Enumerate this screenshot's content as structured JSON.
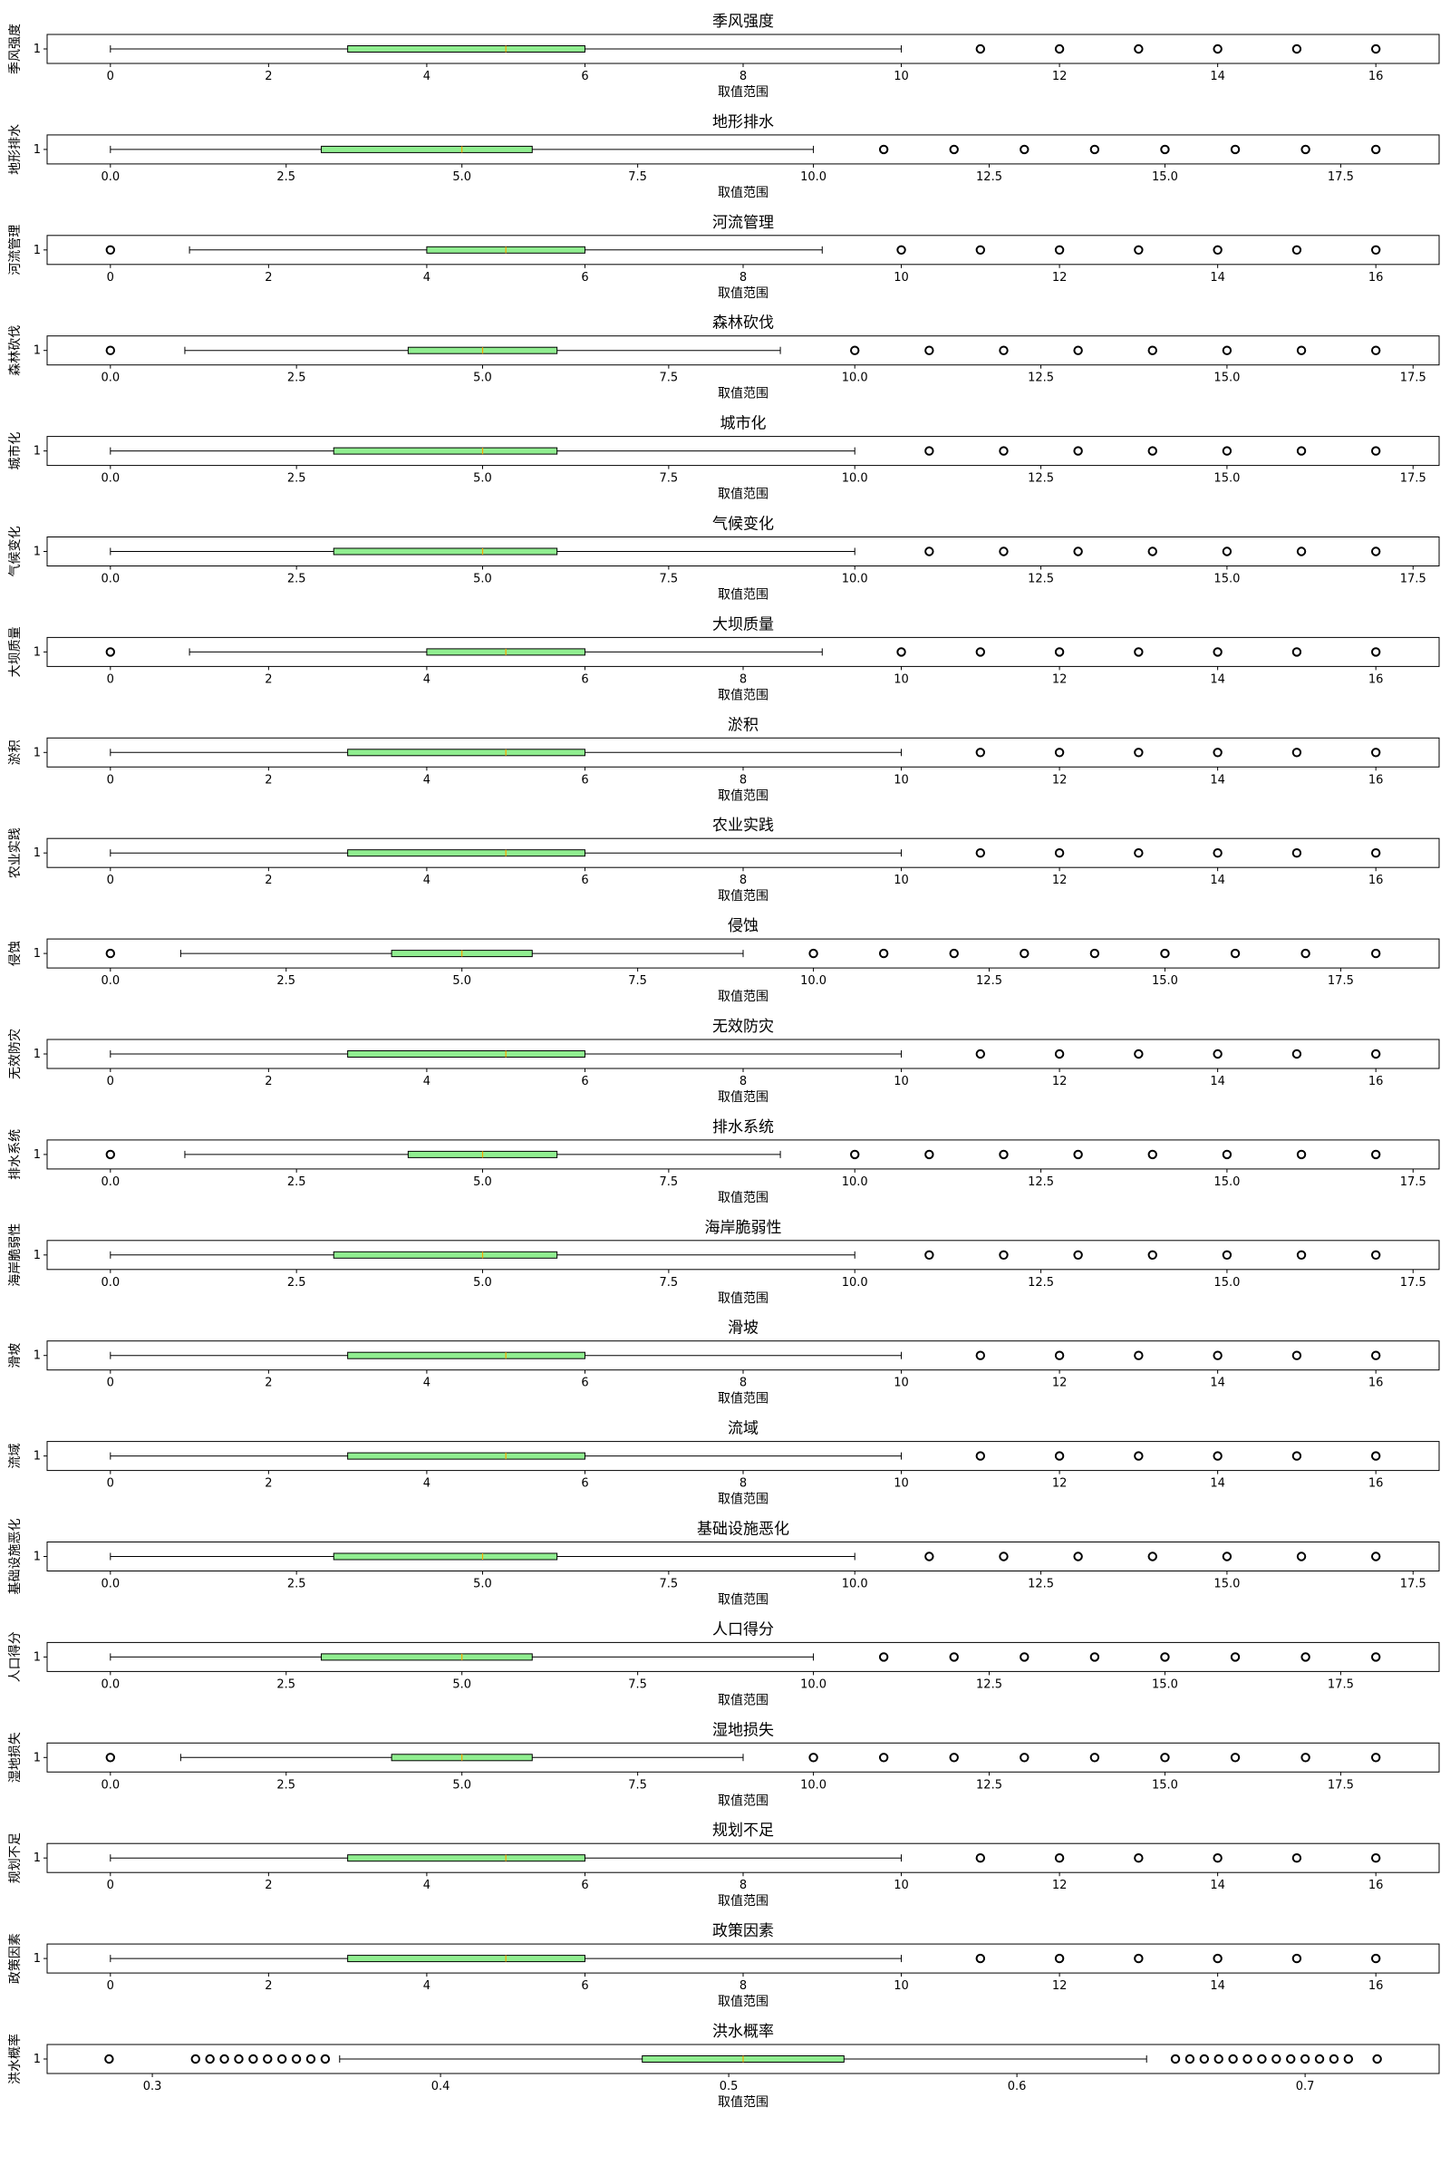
{
  "chart_data": [
    {
      "type": "boxplot",
      "title": "季风强度",
      "ylabel": "季风强度",
      "xlabel": "取值范围",
      "ytick": "1",
      "xlim": [
        -0.8,
        16.8
      ],
      "xticks": [
        0,
        2,
        4,
        6,
        8,
        10,
        12,
        14,
        16
      ],
      "xtick_labels": [
        "0",
        "2",
        "4",
        "6",
        "8",
        "10",
        "12",
        "14",
        "16"
      ],
      "whisker_low": 0,
      "q1": 3,
      "median": 5,
      "q3": 6,
      "whisker_high": 10,
      "fliers": [
        11,
        12,
        13,
        14,
        15,
        16
      ],
      "box_color": "#90ee90",
      "median_color": "#ffa500"
    },
    {
      "type": "boxplot",
      "title": "地形排水",
      "ylabel": "地形排水",
      "xlabel": "取值范围",
      "ytick": "1",
      "xlim": [
        -0.9,
        18.9
      ],
      "xticks": [
        0,
        2.5,
        5,
        7.5,
        10,
        12.5,
        15,
        17.5
      ],
      "xtick_labels": [
        "0.0",
        "2.5",
        "5.0",
        "7.5",
        "10.0",
        "12.5",
        "15.0",
        "17.5"
      ],
      "whisker_low": 0,
      "q1": 3,
      "median": 5,
      "q3": 6,
      "whisker_high": 10,
      "fliers": [
        11,
        12,
        13,
        14,
        15,
        16,
        17,
        18
      ],
      "box_color": "#90ee90",
      "median_color": "#ffa500"
    },
    {
      "type": "boxplot",
      "title": "河流管理",
      "ylabel": "河流管理",
      "xlabel": "取值范围",
      "ytick": "1",
      "xlim": [
        -0.8,
        16.8
      ],
      "xticks": [
        0,
        2,
        4,
        6,
        8,
        10,
        12,
        14,
        16
      ],
      "xtick_labels": [
        "0",
        "2",
        "4",
        "6",
        "8",
        "10",
        "12",
        "14",
        "16"
      ],
      "whisker_low": 1,
      "q1": 4,
      "median": 5,
      "q3": 6,
      "whisker_high": 9,
      "fliers": [
        0,
        10,
        11,
        12,
        13,
        14,
        15,
        16
      ],
      "box_color": "#90ee90",
      "median_color": "#ffa500"
    },
    {
      "type": "boxplot",
      "title": "森林砍伐",
      "ylabel": "森林砍伐",
      "xlabel": "取值范围",
      "ytick": "1",
      "xlim": [
        -0.85,
        17.85
      ],
      "xticks": [
        0,
        2.5,
        5,
        7.5,
        10,
        12.5,
        15,
        17.5
      ],
      "xtick_labels": [
        "0.0",
        "2.5",
        "5.0",
        "7.5",
        "10.0",
        "12.5",
        "15.0",
        "17.5"
      ],
      "whisker_low": 1,
      "q1": 4,
      "median": 5,
      "q3": 6,
      "whisker_high": 9,
      "fliers": [
        0,
        10,
        11,
        12,
        13,
        14,
        15,
        16,
        17
      ],
      "box_color": "#90ee90",
      "median_color": "#ffa500"
    },
    {
      "type": "boxplot",
      "title": "城市化",
      "ylabel": "城市化",
      "xlabel": "取值范围",
      "ytick": "1",
      "xlim": [
        -0.85,
        17.85
      ],
      "xticks": [
        0,
        2.5,
        5,
        7.5,
        10,
        12.5,
        15,
        17.5
      ],
      "xtick_labels": [
        "0.0",
        "2.5",
        "5.0",
        "7.5",
        "10.0",
        "12.5",
        "15.0",
        "17.5"
      ],
      "whisker_low": 0,
      "q1": 3,
      "median": 5,
      "q3": 6,
      "whisker_high": 10,
      "fliers": [
        11,
        12,
        13,
        14,
        15,
        16,
        17
      ],
      "box_color": "#90ee90",
      "median_color": "#ffa500"
    },
    {
      "type": "boxplot",
      "title": "气候变化",
      "ylabel": "气候变化",
      "xlabel": "取值范围",
      "ytick": "1",
      "xlim": [
        -0.85,
        17.85
      ],
      "xticks": [
        0,
        2.5,
        5,
        7.5,
        10,
        12.5,
        15,
        17.5
      ],
      "xtick_labels": [
        "0.0",
        "2.5",
        "5.0",
        "7.5",
        "10.0",
        "12.5",
        "15.0",
        "17.5"
      ],
      "whisker_low": 0,
      "q1": 3,
      "median": 5,
      "q3": 6,
      "whisker_high": 10,
      "fliers": [
        11,
        12,
        13,
        14,
        15,
        16,
        17
      ],
      "box_color": "#90ee90",
      "median_color": "#ffa500"
    },
    {
      "type": "boxplot",
      "title": "大坝质量",
      "ylabel": "大坝质量",
      "xlabel": "取值范围",
      "ytick": "1",
      "xlim": [
        -0.8,
        16.8
      ],
      "xticks": [
        0,
        2,
        4,
        6,
        8,
        10,
        12,
        14,
        16
      ],
      "xtick_labels": [
        "0",
        "2",
        "4",
        "6",
        "8",
        "10",
        "12",
        "14",
        "16"
      ],
      "whisker_low": 1,
      "q1": 4,
      "median": 5,
      "q3": 6,
      "whisker_high": 9,
      "fliers": [
        0,
        10,
        11,
        12,
        13,
        14,
        15,
        16
      ],
      "box_color": "#90ee90",
      "median_color": "#ffa500"
    },
    {
      "type": "boxplot",
      "title": "淤积",
      "ylabel": "淤积",
      "xlabel": "取值范围",
      "ytick": "1",
      "xlim": [
        -0.8,
        16.8
      ],
      "xticks": [
        0,
        2,
        4,
        6,
        8,
        10,
        12,
        14,
        16
      ],
      "xtick_labels": [
        "0",
        "2",
        "4",
        "6",
        "8",
        "10",
        "12",
        "14",
        "16"
      ],
      "whisker_low": 0,
      "q1": 3,
      "median": 5,
      "q3": 6,
      "whisker_high": 10,
      "fliers": [
        11,
        12,
        13,
        14,
        15,
        16
      ],
      "box_color": "#90ee90",
      "median_color": "#ffa500"
    },
    {
      "type": "boxplot",
      "title": "农业实践",
      "ylabel": "农业实践",
      "xlabel": "取值范围",
      "ytick": "1",
      "xlim": [
        -0.8,
        16.8
      ],
      "xticks": [
        0,
        2,
        4,
        6,
        8,
        10,
        12,
        14,
        16
      ],
      "xtick_labels": [
        "0",
        "2",
        "4",
        "6",
        "8",
        "10",
        "12",
        "14",
        "16"
      ],
      "whisker_low": 0,
      "q1": 3,
      "median": 5,
      "q3": 6,
      "whisker_high": 10,
      "fliers": [
        11,
        12,
        13,
        14,
        15,
        16
      ],
      "box_color": "#90ee90",
      "median_color": "#ffa500"
    },
    {
      "type": "boxplot",
      "title": "侵蚀",
      "ylabel": "侵蚀",
      "xlabel": "取值范围",
      "ytick": "1",
      "xlim": [
        -0.9,
        18.9
      ],
      "xticks": [
        0,
        2.5,
        5,
        7.5,
        10,
        12.5,
        15,
        17.5
      ],
      "xtick_labels": [
        "0.0",
        "2.5",
        "5.0",
        "7.5",
        "10.0",
        "12.5",
        "15.0",
        "17.5"
      ],
      "whisker_low": 1,
      "q1": 4,
      "median": 5,
      "q3": 6,
      "whisker_high": 9,
      "fliers": [
        0,
        10,
        11,
        12,
        13,
        14,
        15,
        16,
        17,
        18
      ],
      "box_color": "#90ee90",
      "median_color": "#ffa500"
    },
    {
      "type": "boxplot",
      "title": "无效防灾",
      "ylabel": "无效防灾",
      "xlabel": "取值范围",
      "ytick": "1",
      "xlim": [
        -0.8,
        16.8
      ],
      "xticks": [
        0,
        2,
        4,
        6,
        8,
        10,
        12,
        14,
        16
      ],
      "xtick_labels": [
        "0",
        "2",
        "4",
        "6",
        "8",
        "10",
        "12",
        "14",
        "16"
      ],
      "whisker_low": 0,
      "q1": 3,
      "median": 5,
      "q3": 6,
      "whisker_high": 10,
      "fliers": [
        11,
        12,
        13,
        14,
        15,
        16
      ],
      "box_color": "#90ee90",
      "median_color": "#ffa500"
    },
    {
      "type": "boxplot",
      "title": "排水系统",
      "ylabel": "排水系统",
      "xlabel": "取值范围",
      "ytick": "1",
      "xlim": [
        -0.85,
        17.85
      ],
      "xticks": [
        0,
        2.5,
        5,
        7.5,
        10,
        12.5,
        15,
        17.5
      ],
      "xtick_labels": [
        "0.0",
        "2.5",
        "5.0",
        "7.5",
        "10.0",
        "12.5",
        "15.0",
        "17.5"
      ],
      "whisker_low": 1,
      "q1": 4,
      "median": 5,
      "q3": 6,
      "whisker_high": 9,
      "fliers": [
        0,
        10,
        11,
        12,
        13,
        14,
        15,
        16,
        17
      ],
      "box_color": "#90ee90",
      "median_color": "#ffa500"
    },
    {
      "type": "boxplot",
      "title": "海岸脆弱性",
      "ylabel": "海岸脆弱性",
      "xlabel": "取值范围",
      "ytick": "1",
      "xlim": [
        -0.85,
        17.85
      ],
      "xticks": [
        0,
        2.5,
        5,
        7.5,
        10,
        12.5,
        15,
        17.5
      ],
      "xtick_labels": [
        "0.0",
        "2.5",
        "5.0",
        "7.5",
        "10.0",
        "12.5",
        "15.0",
        "17.5"
      ],
      "whisker_low": 0,
      "q1": 3,
      "median": 5,
      "q3": 6,
      "whisker_high": 10,
      "fliers": [
        11,
        12,
        13,
        14,
        15,
        16,
        17
      ],
      "box_color": "#90ee90",
      "median_color": "#ffa500"
    },
    {
      "type": "boxplot",
      "title": "滑坡",
      "ylabel": "滑坡",
      "xlabel": "取值范围",
      "ytick": "1",
      "xlim": [
        -0.8,
        16.8
      ],
      "xticks": [
        0,
        2,
        4,
        6,
        8,
        10,
        12,
        14,
        16
      ],
      "xtick_labels": [
        "0",
        "2",
        "4",
        "6",
        "8",
        "10",
        "12",
        "14",
        "16"
      ],
      "whisker_low": 0,
      "q1": 3,
      "median": 5,
      "q3": 6,
      "whisker_high": 10,
      "fliers": [
        11,
        12,
        13,
        14,
        15,
        16
      ],
      "box_color": "#90ee90",
      "median_color": "#ffa500"
    },
    {
      "type": "boxplot",
      "title": "流域",
      "ylabel": "流域",
      "xlabel": "取值范围",
      "ytick": "1",
      "xlim": [
        -0.8,
        16.8
      ],
      "xticks": [
        0,
        2,
        4,
        6,
        8,
        10,
        12,
        14,
        16
      ],
      "xtick_labels": [
        "0",
        "2",
        "4",
        "6",
        "8",
        "10",
        "12",
        "14",
        "16"
      ],
      "whisker_low": 0,
      "q1": 3,
      "median": 5,
      "q3": 6,
      "whisker_high": 10,
      "fliers": [
        11,
        12,
        13,
        14,
        15,
        16
      ],
      "box_color": "#90ee90",
      "median_color": "#ffa500"
    },
    {
      "type": "boxplot",
      "title": "基础设施恶化",
      "ylabel": "基础设施恶化",
      "xlabel": "取值范围",
      "ytick": "1",
      "xlim": [
        -0.85,
        17.85
      ],
      "xticks": [
        0,
        2.5,
        5,
        7.5,
        10,
        12.5,
        15,
        17.5
      ],
      "xtick_labels": [
        "0.0",
        "2.5",
        "5.0",
        "7.5",
        "10.0",
        "12.5",
        "15.0",
        "17.5"
      ],
      "whisker_low": 0,
      "q1": 3,
      "median": 5,
      "q3": 6,
      "whisker_high": 10,
      "fliers": [
        11,
        12,
        13,
        14,
        15,
        16,
        17
      ],
      "box_color": "#90ee90",
      "median_color": "#ffa500"
    },
    {
      "type": "boxplot",
      "title": "人口得分",
      "ylabel": "人口得分",
      "xlabel": "取值范围",
      "ytick": "1",
      "xlim": [
        -0.9,
        18.9
      ],
      "xticks": [
        0,
        2.5,
        5,
        7.5,
        10,
        12.5,
        15,
        17.5
      ],
      "xtick_labels": [
        "0.0",
        "2.5",
        "5.0",
        "7.5",
        "10.0",
        "12.5",
        "15.0",
        "17.5"
      ],
      "whisker_low": 0,
      "q1": 3,
      "median": 5,
      "q3": 6,
      "whisker_high": 10,
      "fliers": [
        11,
        12,
        13,
        14,
        15,
        16,
        17,
        18
      ],
      "box_color": "#90ee90",
      "median_color": "#ffa500"
    },
    {
      "type": "boxplot",
      "title": "湿地损失",
      "ylabel": "湿地损失",
      "xlabel": "取值范围",
      "ytick": "1",
      "xlim": [
        -0.9,
        18.9
      ],
      "xticks": [
        0,
        2.5,
        5,
        7.5,
        10,
        12.5,
        15,
        17.5
      ],
      "xtick_labels": [
        "0.0",
        "2.5",
        "5.0",
        "7.5",
        "10.0",
        "12.5",
        "15.0",
        "17.5"
      ],
      "whisker_low": 1,
      "q1": 4,
      "median": 5,
      "q3": 6,
      "whisker_high": 9,
      "fliers": [
        0,
        10,
        11,
        12,
        13,
        14,
        15,
        16,
        17,
        18
      ],
      "box_color": "#90ee90",
      "median_color": "#ffa500"
    },
    {
      "type": "boxplot",
      "title": "规划不足",
      "ylabel": "规划不足",
      "xlabel": "取值范围",
      "ytick": "1",
      "xlim": [
        -0.8,
        16.8
      ],
      "xticks": [
        0,
        2,
        4,
        6,
        8,
        10,
        12,
        14,
        16
      ],
      "xtick_labels": [
        "0",
        "2",
        "4",
        "6",
        "8",
        "10",
        "12",
        "14",
        "16"
      ],
      "whisker_low": 0,
      "q1": 3,
      "median": 5,
      "q3": 6,
      "whisker_high": 10,
      "fliers": [
        11,
        12,
        13,
        14,
        15,
        16
      ],
      "box_color": "#90ee90",
      "median_color": "#ffa500"
    },
    {
      "type": "boxplot",
      "title": "政策因素",
      "ylabel": "政策因素",
      "xlabel": "取值范围",
      "ytick": "1",
      "xlim": [
        -0.8,
        16.8
      ],
      "xticks": [
        0,
        2,
        4,
        6,
        8,
        10,
        12,
        14,
        16
      ],
      "xtick_labels": [
        "0",
        "2",
        "4",
        "6",
        "8",
        "10",
        "12",
        "14",
        "16"
      ],
      "whisker_low": 0,
      "q1": 3,
      "median": 5,
      "q3": 6,
      "whisker_high": 10,
      "fliers": [
        11,
        12,
        13,
        14,
        15,
        16
      ],
      "box_color": "#90ee90",
      "median_color": "#ffa500"
    },
    {
      "type": "boxplot",
      "title": "洪水概率",
      "ylabel": "洪水概率",
      "xlabel": "取值范围",
      "ytick": "1",
      "xlim": [
        0.2635,
        0.7465
      ],
      "xticks": [
        0.3,
        0.4,
        0.5,
        0.6,
        0.7
      ],
      "xtick_labels": [
        "0.3",
        "0.4",
        "0.5",
        "0.6",
        "0.7"
      ],
      "whisker_low": 0.365,
      "q1": 0.47,
      "median": 0.505,
      "q3": 0.54,
      "whisker_high": 0.645,
      "fliers": [
        0.285,
        0.315,
        0.32,
        0.325,
        0.33,
        0.335,
        0.34,
        0.345,
        0.35,
        0.355,
        0.36,
        0.655,
        0.66,
        0.665,
        0.67,
        0.675,
        0.68,
        0.685,
        0.69,
        0.695,
        0.7,
        0.705,
        0.71,
        0.715,
        0.725
      ],
      "box_color": "#90ee90",
      "median_color": "#ffa500"
    }
  ]
}
